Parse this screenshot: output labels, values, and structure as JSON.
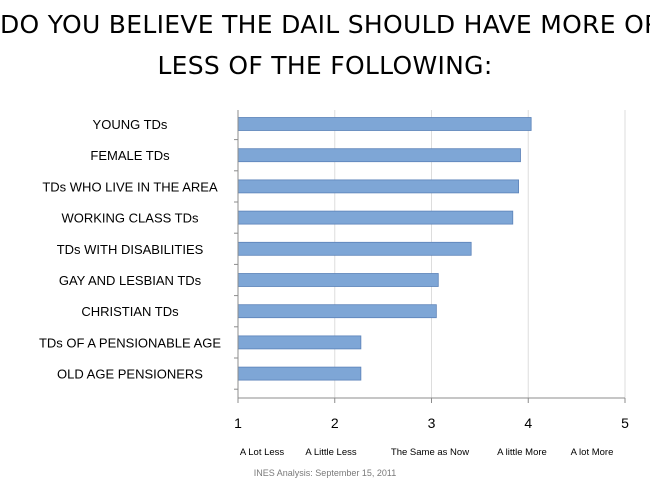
{
  "title_lines": [
    "DO YOU BELIEVE THE DAIL SHOULD HAVE MORE OR",
    "LESS OF THE FOLLOWING:"
  ],
  "footer": "INES Analysis: September 15, 2011",
  "colors": {
    "bar": "#7ea6d6",
    "bar_edge": "#5b82b8",
    "axis": "#8c8c8c",
    "grid": "#dddddd"
  },
  "chart_data": {
    "type": "bar",
    "orientation": "horizontal",
    "categories": [
      "YOUNG TDs",
      "FEMALE TDs",
      "TDs WHO LIVE IN THE AREA",
      "WORKING CLASS TDs",
      "TDs WITH DISABILITIES",
      "GAY AND LESBIAN TDs",
      "CHRISTIAN TDs",
      "TDs OF A PENSIONABLE AGE",
      "OLD AGE PENSIONERS"
    ],
    "values": [
      4.03,
      3.92,
      3.9,
      3.84,
      3.41,
      3.07,
      3.05,
      2.27,
      2.27
    ],
    "xlim": [
      1,
      5
    ],
    "xticks": [
      1,
      2,
      3,
      4,
      5
    ],
    "xtick_labels": [
      "1",
      "2",
      "3",
      "4",
      "5"
    ],
    "scale_labels": [
      "A Lot Less",
      "A Little Less",
      "The Same as Now",
      "A little More",
      "A lot More"
    ],
    "grid": "vertical"
  }
}
